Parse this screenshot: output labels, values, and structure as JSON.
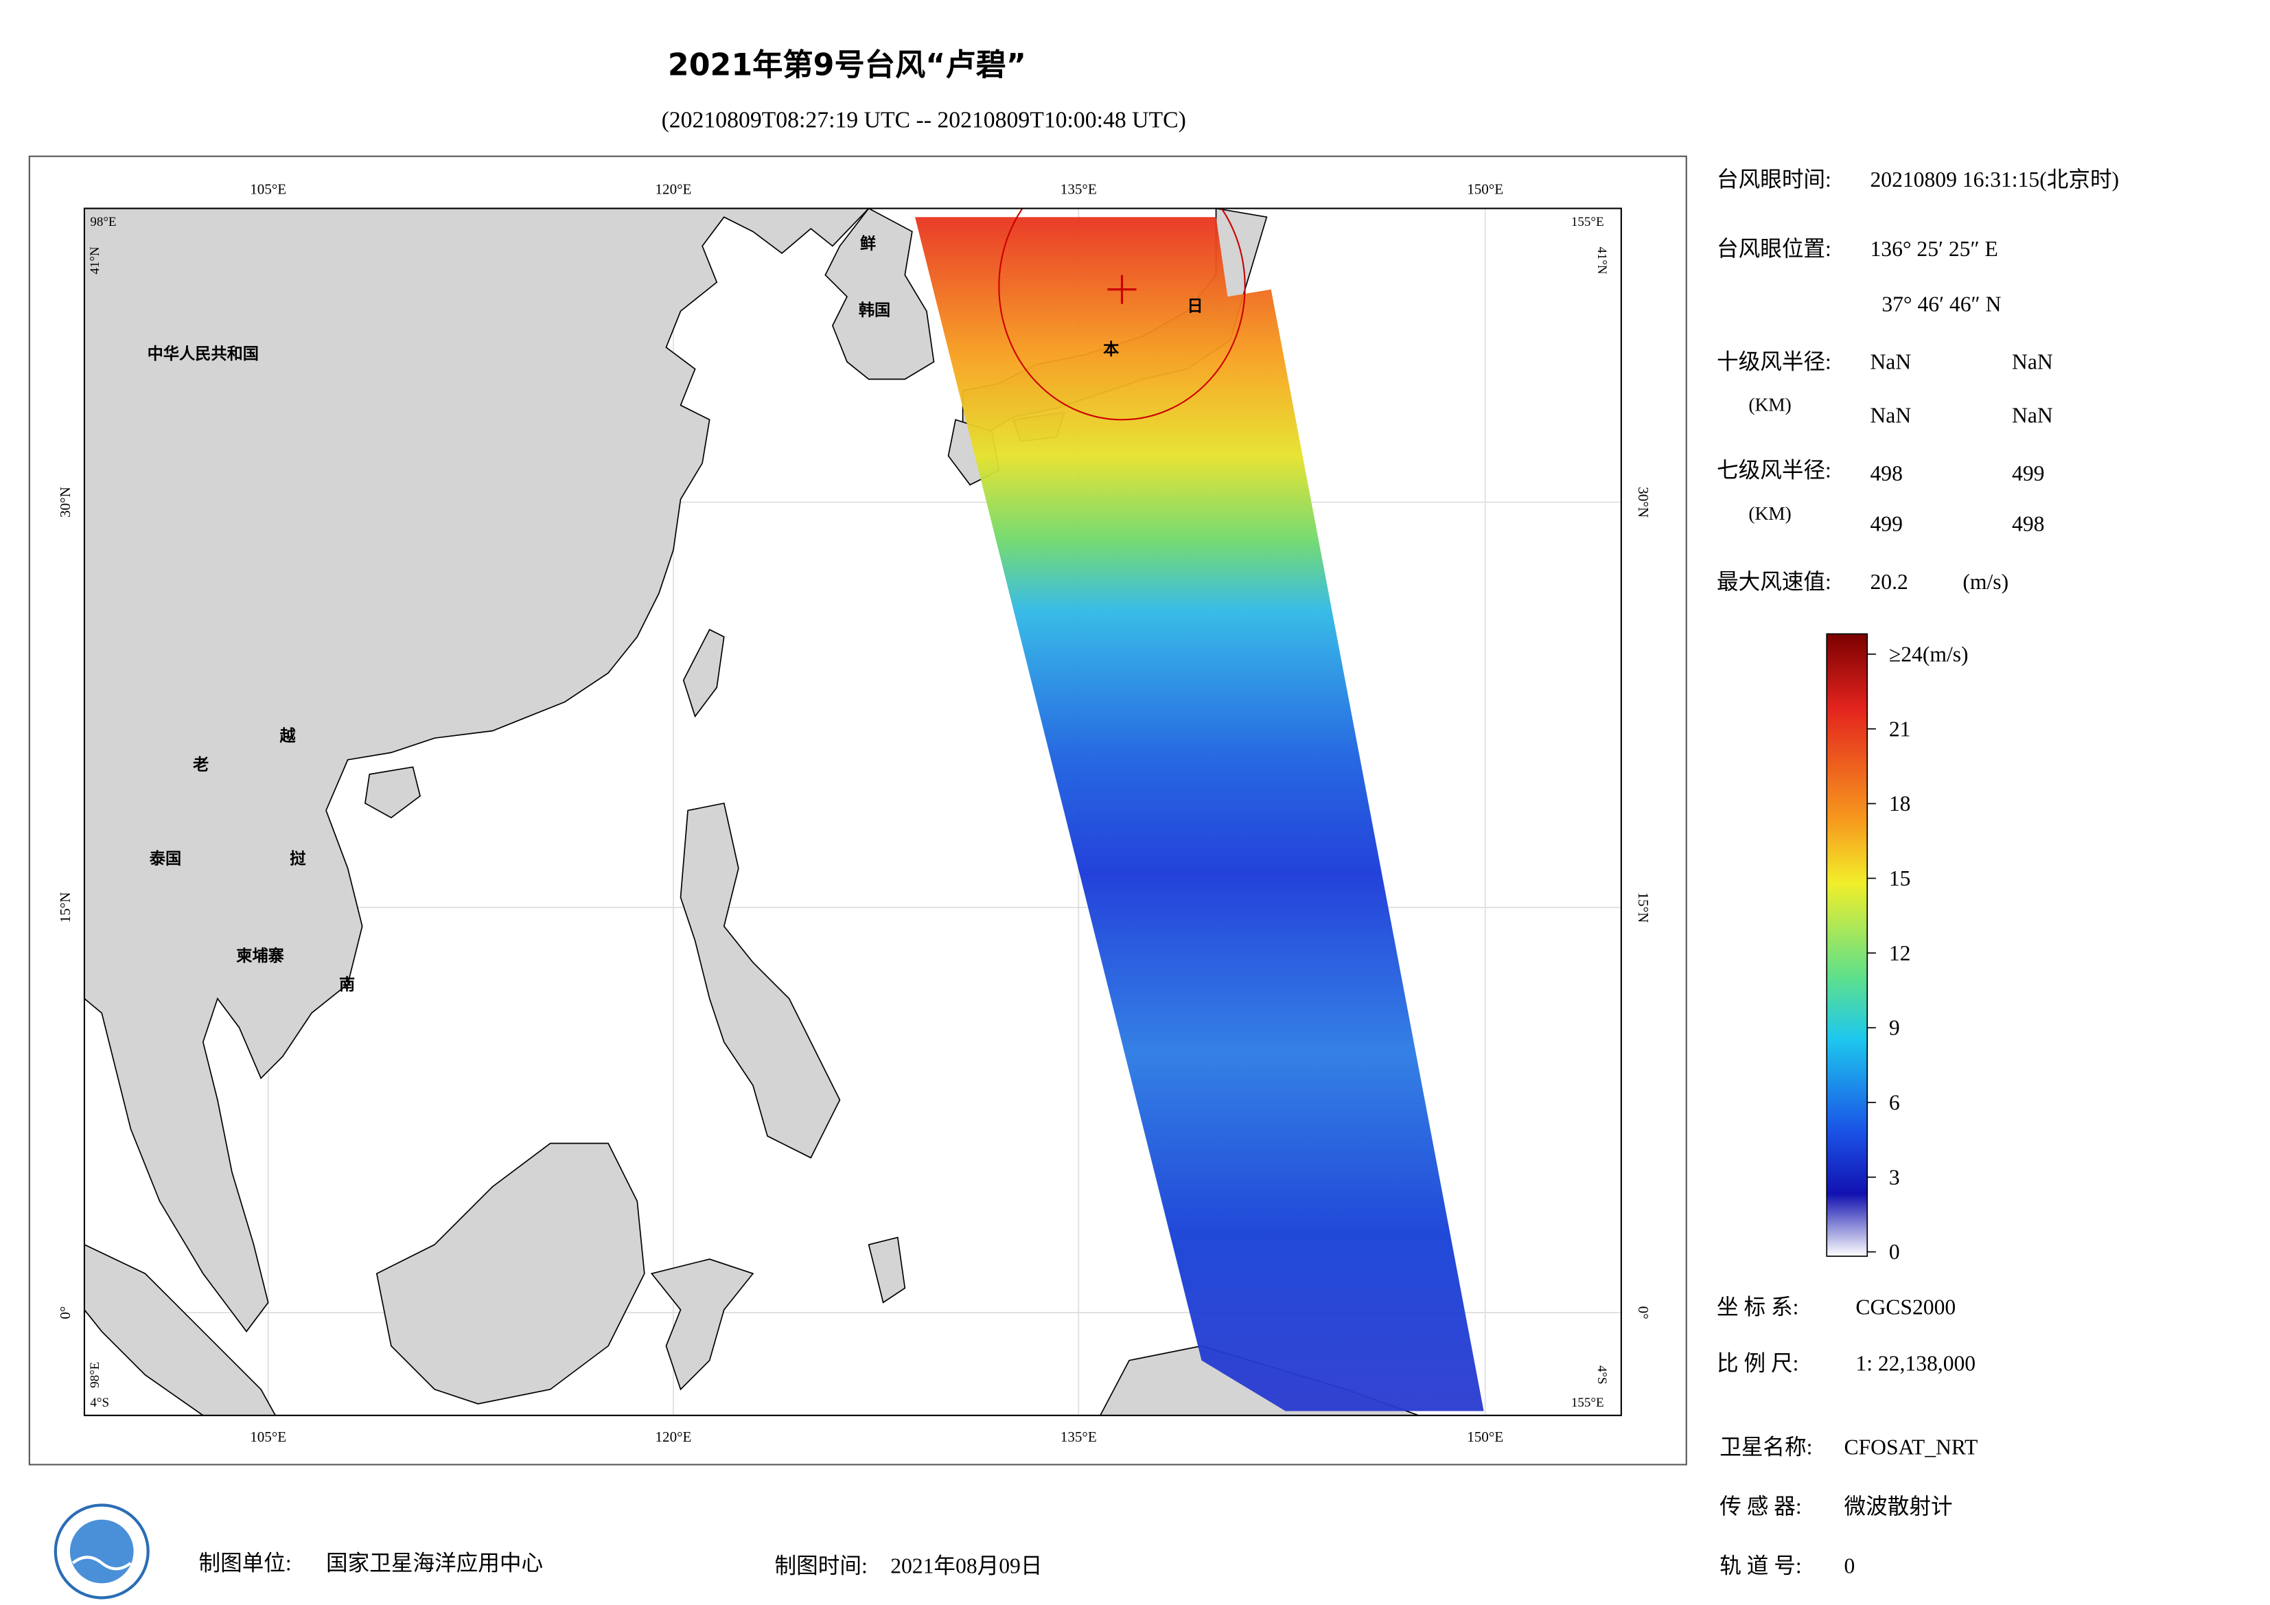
{
  "header": {
    "title": "2021年第9号台风“卢碧”",
    "subtitle": "(20210809T08:27:19 UTC -- 20210809T10:00:48 UTC)"
  },
  "map": {
    "lon_labels": [
      "105°E",
      "120°E",
      "135°E",
      "150°E"
    ],
    "lat_labels": [
      "30°N",
      "15°N",
      "0°"
    ],
    "corner_labels": {
      "west": "98°E",
      "east": "155°E",
      "north": "41°N",
      "south": "4°S"
    },
    "place_labels": [
      "中华人民共和国",
      "鲜",
      "韩国",
      "日",
      "本",
      "老",
      "越",
      "泰国",
      "挝",
      "柬埔寨",
      "南"
    ]
  },
  "info": {
    "eye_time": {
      "label": "台风眼时间:",
      "value": "20210809 16:31:15(北京时)"
    },
    "eye_position": {
      "label": "台风眼位置:",
      "lon": "136° 25′ 25″ E",
      "lat": "37° 46′ 46″ N"
    },
    "radius_10": {
      "label": "十级风半径:",
      "unit": "(KM)",
      "values": [
        "NaN",
        "NaN",
        "NaN",
        "NaN"
      ]
    },
    "radius_7": {
      "label": "七级风半径:",
      "unit": "(KM)",
      "values": [
        "498",
        "499",
        "499",
        "498"
      ]
    },
    "max_wind": {
      "label": "最大风速值:",
      "value": "20.2",
      "unit": "(m/s)"
    }
  },
  "colorbar": {
    "range": [
      0,
      24
    ],
    "ticks": [
      {
        "value": 24,
        "label": "≥24(m/s)"
      },
      21,
      18,
      15,
      12,
      9,
      6,
      3,
      0
    ]
  },
  "meta": [
    {
      "label": "坐 标 系:",
      "value": "CGCS2000"
    },
    {
      "label": "比 例 尺:",
      "value": "1: 22,138,000"
    },
    {
      "label": "卫星名称:",
      "value": "CFOSAT_NRT"
    },
    {
      "label": "传 感 器:",
      "value": "微波散射计"
    },
    {
      "label": "轨 道 号:",
      "value": "0"
    }
  ],
  "footer": {
    "producer_label": "制图单位:",
    "producer": "国家卫星海洋应用中心",
    "date_label": "制图时间:",
    "date": "2021年08月09日"
  }
}
